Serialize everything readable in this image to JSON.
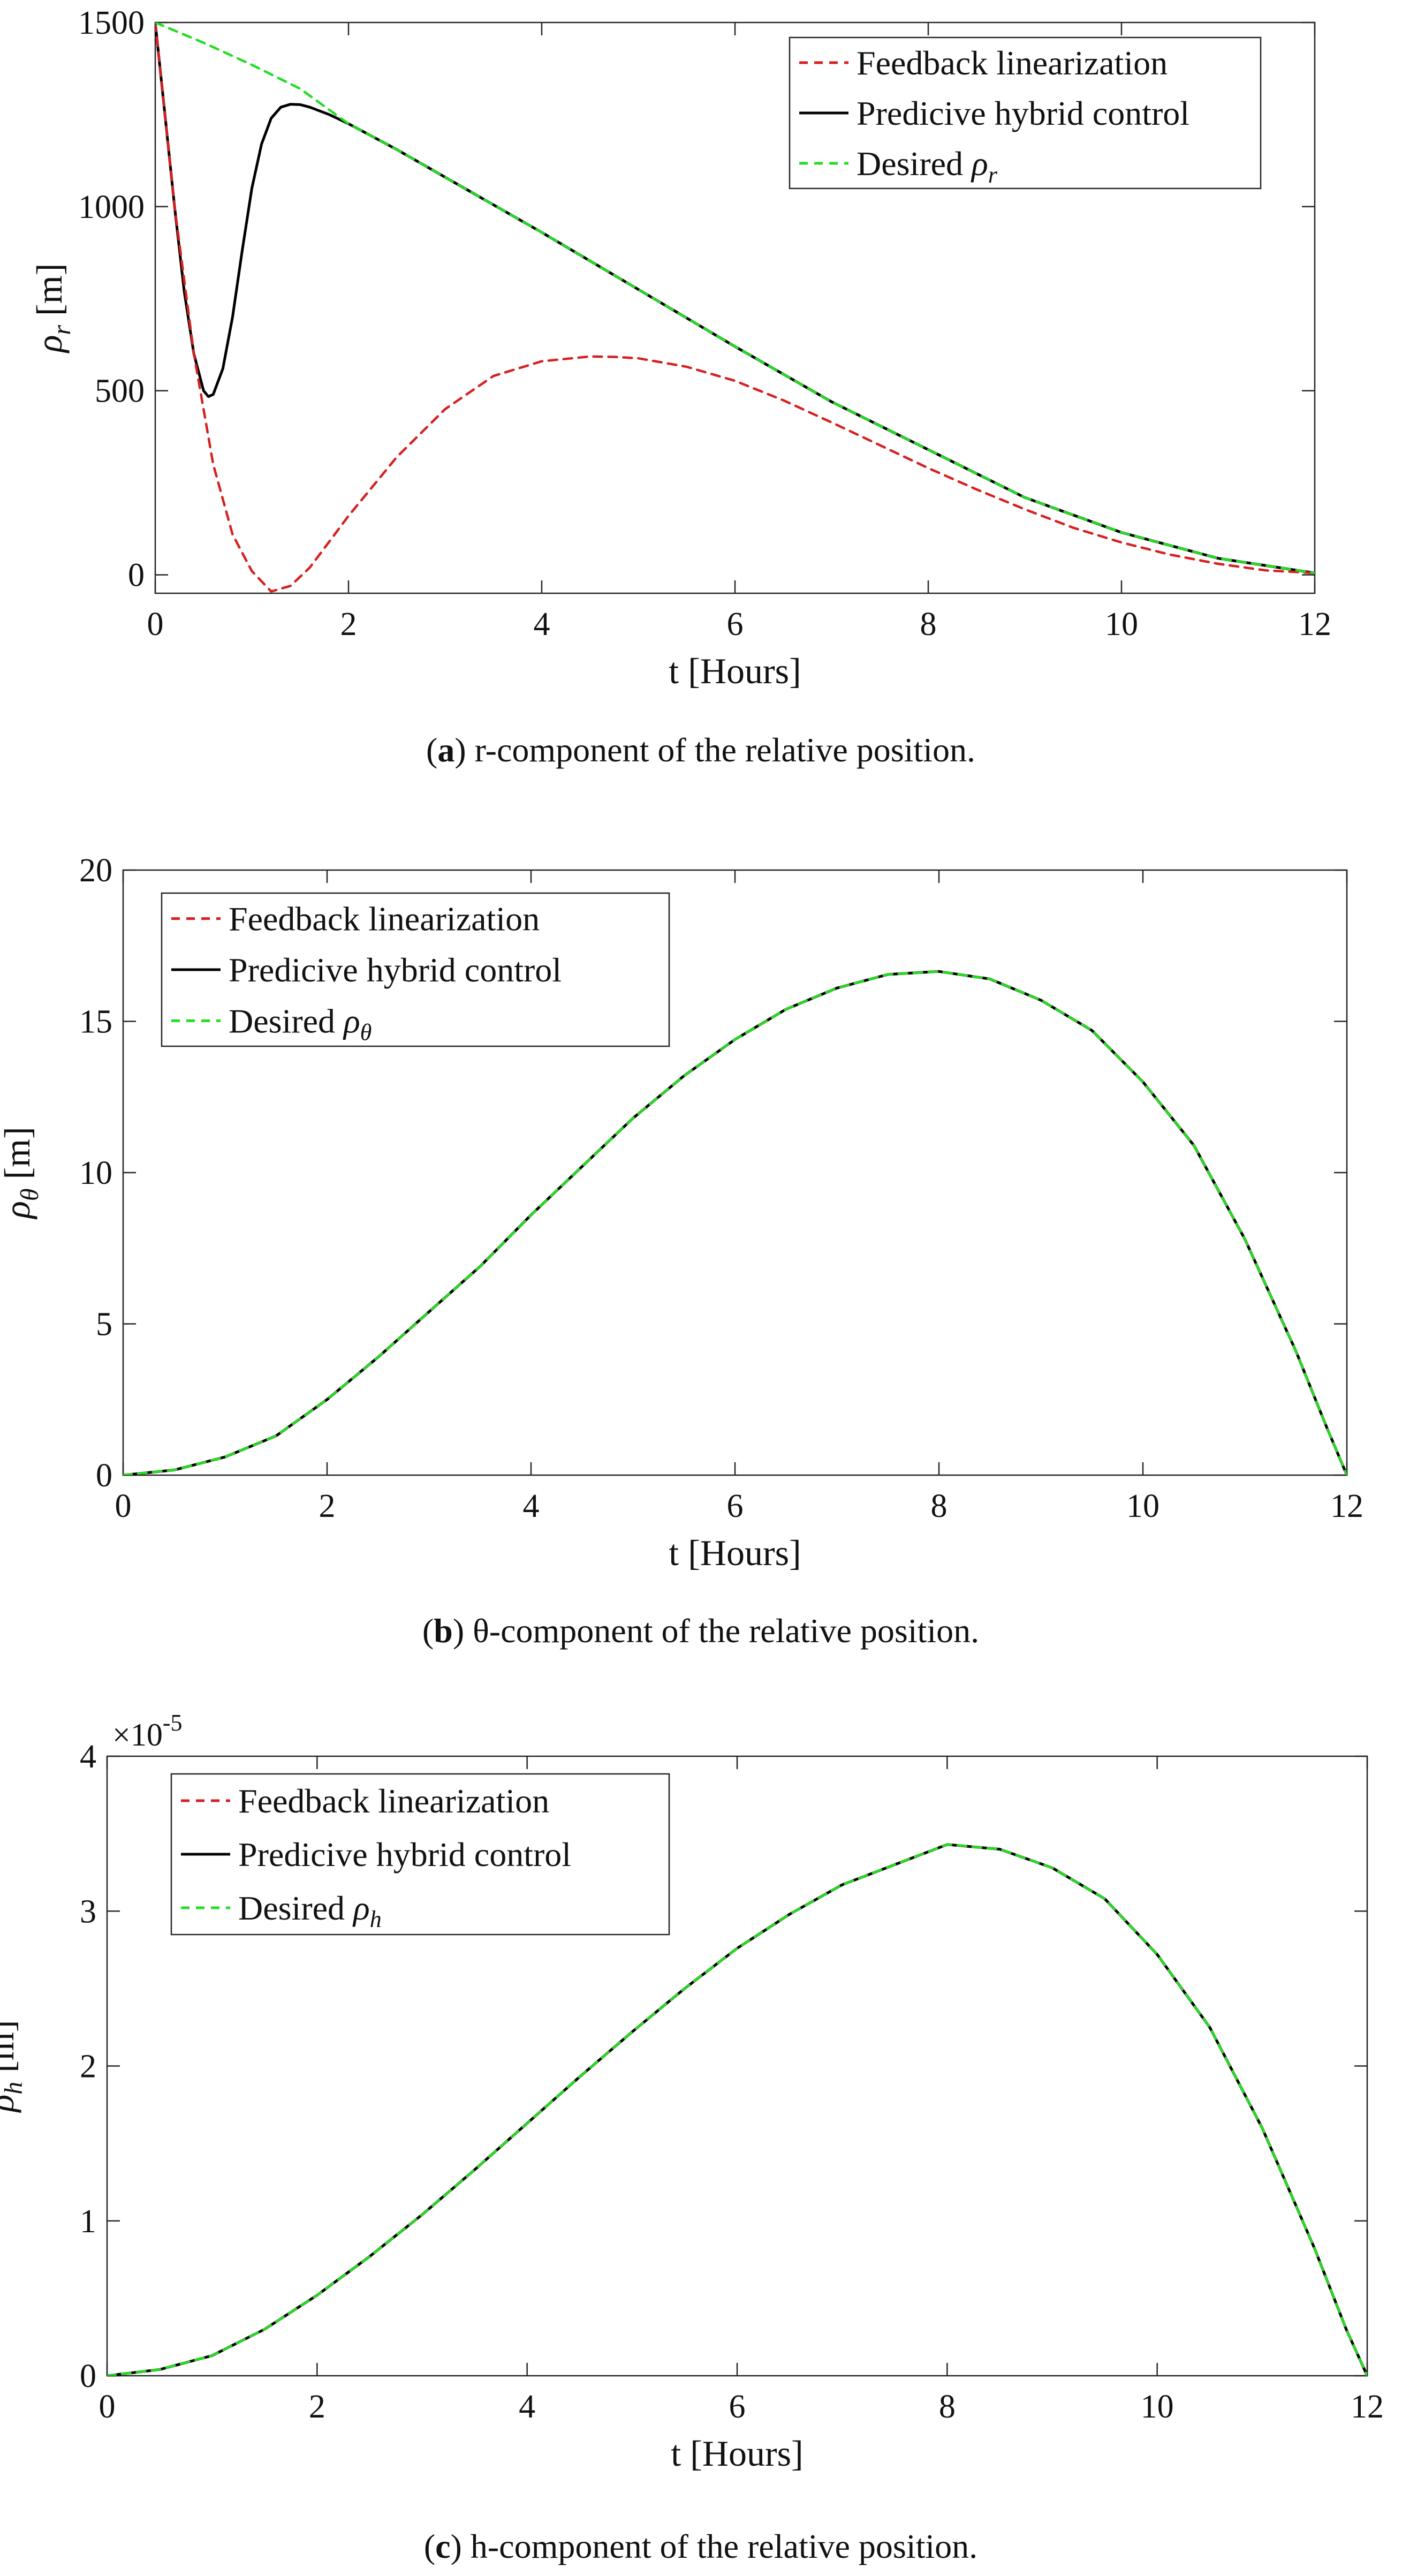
{
  "colors": {
    "feedback": "#d62020",
    "predictive": "#000000",
    "desired": "#22dd22",
    "axis": "#262626",
    "text": "#111111"
  },
  "legend_labels": {
    "feedback": "Feedback linearization",
    "predictive": "Predicive hybrid control",
    "desired_prefix": "Desired"
  },
  "chart_data": [
    {
      "type": "line",
      "panel": "a",
      "caption_letter": "a",
      "caption_text": "r-component of the relative position.",
      "xlabel": "t [Hours]",
      "ylabel_symbol": "ρ",
      "ylabel_sub": "r",
      "ylabel_unit": "[m]",
      "legend_desired_sub": "r",
      "legend_position": "top-right",
      "multiplier": "",
      "xlim": [
        0,
        12
      ],
      "ylim": [
        -50,
        1500
      ],
      "xticks": [
        "0",
        "2",
        "4",
        "6",
        "8",
        "10",
        "12"
      ],
      "yticks": [
        "0",
        "500",
        "1000",
        "1500"
      ],
      "ytick_values": [
        0,
        500,
        1000,
        1500
      ],
      "grid": false,
      "series": [
        {
          "key": "feedback",
          "name": "Feedback linearization",
          "style": "dashed",
          "x": [
            0,
            0.2,
            0.4,
            0.6,
            0.8,
            1.0,
            1.2,
            1.4,
            1.6,
            2.0,
            2.5,
            3.0,
            3.5,
            4.0,
            4.5,
            4.75,
            5.0,
            5.5,
            6.0,
            6.5,
            7.0,
            7.5,
            8.0,
            8.5,
            9.0,
            9.5,
            10.0,
            10.5,
            11.0,
            11.5,
            12.0
          ],
          "y": [
            1500,
            1000,
            600,
            300,
            110,
            10,
            -45,
            -30,
            20,
            160,
            320,
            450,
            540,
            580,
            593,
            592,
            588,
            565,
            527,
            474,
            414,
            352,
            290,
            232,
            178,
            128,
            88,
            55,
            30,
            12,
            5
          ]
        },
        {
          "key": "predictive",
          "name": "Predicive hybrid control",
          "style": "solid",
          "x": [
            0,
            0.1,
            0.2,
            0.3,
            0.4,
            0.5,
            0.55,
            0.6,
            0.7,
            0.8,
            0.9,
            1.0,
            1.1,
            1.2,
            1.3,
            1.4,
            1.5,
            1.6,
            1.8,
            2.0,
            2.5,
            3.0,
            4.0,
            5.0,
            6.0,
            7.0,
            8.0,
            9.0,
            10.0,
            11.0,
            12.0
          ],
          "y": [
            1500,
            1250,
            1000,
            770,
            600,
            500,
            484,
            490,
            560,
            700,
            880,
            1050,
            1170,
            1240,
            1270,
            1278,
            1277,
            1270,
            1250,
            1225,
            1155,
            1080,
            930,
            775,
            620,
            470,
            340,
            210,
            115,
            45,
            5
          ]
        },
        {
          "key": "desired",
          "name": "Desired ρr",
          "style": "dashed",
          "x": [
            0,
            0.5,
            1.0,
            1.5,
            2.0,
            2.5,
            3.0,
            4.0,
            5.0,
            6.0,
            7.0,
            8.0,
            9.0,
            10.0,
            11.0,
            12.0
          ],
          "y": [
            1500,
            1445,
            1385,
            1320,
            1225,
            1155,
            1080,
            930,
            775,
            620,
            470,
            340,
            210,
            115,
            45,
            5
          ]
        }
      ]
    },
    {
      "type": "line",
      "panel": "b",
      "caption_letter": "b",
      "caption_text": "θ-component of the relative position.",
      "xlabel": "t [Hours]",
      "ylabel_symbol": "ρ",
      "ylabel_sub": "θ",
      "ylabel_unit": "[m]",
      "legend_desired_sub": "θ",
      "legend_position": "top-left",
      "multiplier": "",
      "xlim": [
        0,
        12
      ],
      "ylim": [
        0,
        20
      ],
      "xticks": [
        "0",
        "2",
        "4",
        "6",
        "8",
        "10",
        "12"
      ],
      "yticks": [
        "0",
        "5",
        "10",
        "15",
        "20"
      ],
      "ytick_values": [
        0,
        5,
        10,
        15,
        20
      ],
      "grid": false,
      "series": [
        {
          "key": "feedback",
          "name": "Feedback linearization",
          "style": "dashed",
          "x": [
            0,
            0.5,
            1,
            1.5,
            2,
            2.5,
            3,
            3.5,
            4,
            4.5,
            5,
            5.5,
            6,
            6.5,
            7,
            7.5,
            8,
            8.5,
            9,
            9.5,
            10,
            10.5,
            11,
            11.5,
            11.8,
            12
          ],
          "y": [
            0,
            0.17,
            0.6,
            1.3,
            2.5,
            3.9,
            5.4,
            6.9,
            8.6,
            10.2,
            11.8,
            13.2,
            14.4,
            15.4,
            16.1,
            16.55,
            16.65,
            16.4,
            15.7,
            14.7,
            13.0,
            10.9,
            7.8,
            4.1,
            1.6,
            0
          ]
        },
        {
          "key": "predictive",
          "name": "Predicive hybrid control",
          "style": "solid",
          "x": [
            0,
            0.5,
            1,
            1.5,
            2,
            2.5,
            3,
            3.5,
            4,
            4.5,
            5,
            5.5,
            6,
            6.5,
            7,
            7.5,
            8,
            8.5,
            9,
            9.5,
            10,
            10.5,
            11,
            11.5,
            11.8,
            12
          ],
          "y": [
            0,
            0.17,
            0.6,
            1.3,
            2.5,
            3.9,
            5.4,
            6.9,
            8.6,
            10.2,
            11.8,
            13.2,
            14.4,
            15.4,
            16.1,
            16.55,
            16.65,
            16.4,
            15.7,
            14.7,
            13.0,
            10.9,
            7.8,
            4.1,
            1.6,
            0
          ]
        },
        {
          "key": "desired",
          "name": "Desired ρθ",
          "style": "dashed",
          "x": [
            0,
            0.5,
            1,
            1.5,
            2,
            2.5,
            3,
            3.5,
            4,
            4.5,
            5,
            5.5,
            6,
            6.5,
            7,
            7.5,
            8,
            8.5,
            9,
            9.5,
            10,
            10.5,
            11,
            11.5,
            11.8,
            12
          ],
          "y": [
            0,
            0.17,
            0.6,
            1.3,
            2.5,
            3.9,
            5.4,
            6.9,
            8.6,
            10.2,
            11.8,
            13.2,
            14.4,
            15.4,
            16.1,
            16.55,
            16.65,
            16.4,
            15.7,
            14.7,
            13.0,
            10.9,
            7.8,
            4.1,
            1.6,
            0
          ]
        }
      ]
    },
    {
      "type": "line",
      "panel": "c",
      "caption_letter": "c",
      "caption_text": "h-component of the relative position.",
      "xlabel": "t [Hours]",
      "ylabel_symbol": "ρ",
      "ylabel_sub": "h",
      "ylabel_unit": "[m]",
      "legend_desired_sub": "h",
      "legend_position": "top-left",
      "multiplier": "×10",
      "multiplier_exp": "-5",
      "xlim": [
        0,
        12
      ],
      "ylim": [
        0,
        4
      ],
      "xticks": [
        "0",
        "2",
        "4",
        "6",
        "8",
        "10",
        "12"
      ],
      "yticks": [
        "0",
        "1",
        "2",
        "3",
        "4"
      ],
      "ytick_values": [
        0,
        1,
        2,
        3,
        4
      ],
      "grid": false,
      "series": [
        {
          "key": "feedback",
          "name": "Feedback linearization",
          "style": "dashed",
          "x": [
            0,
            0.5,
            1,
            1.5,
            2,
            2.5,
            3,
            3.5,
            4,
            4.5,
            5,
            5.5,
            6,
            6.5,
            7,
            7.5,
            8,
            8.5,
            9,
            9.5,
            10,
            10.5,
            11,
            11.5,
            11.8,
            12
          ],
          "y": [
            0,
            0.04,
            0.13,
            0.3,
            0.52,
            0.77,
            1.04,
            1.33,
            1.63,
            1.93,
            2.22,
            2.5,
            2.76,
            2.98,
            3.17,
            3.3,
            3.43,
            3.4,
            3.28,
            3.08,
            2.72,
            2.25,
            1.6,
            0.82,
            0.3,
            0
          ]
        },
        {
          "key": "predictive",
          "name": "Predicive hybrid control",
          "style": "solid",
          "x": [
            0,
            0.5,
            1,
            1.5,
            2,
            2.5,
            3,
            3.5,
            4,
            4.5,
            5,
            5.5,
            6,
            6.5,
            7,
            7.5,
            8,
            8.5,
            9,
            9.5,
            10,
            10.5,
            11,
            11.5,
            11.8,
            12
          ],
          "y": [
            0,
            0.04,
            0.13,
            0.3,
            0.52,
            0.77,
            1.04,
            1.33,
            1.63,
            1.93,
            2.22,
            2.5,
            2.76,
            2.98,
            3.17,
            3.3,
            3.43,
            3.4,
            3.28,
            3.08,
            2.72,
            2.25,
            1.6,
            0.82,
            0.3,
            0
          ]
        },
        {
          "key": "desired",
          "name": "Desired ρh",
          "style": "dashed",
          "x": [
            0,
            0.5,
            1,
            1.5,
            2,
            2.5,
            3,
            3.5,
            4,
            4.5,
            5,
            5.5,
            6,
            6.5,
            7,
            7.5,
            8,
            8.5,
            9,
            9.5,
            10,
            10.5,
            11,
            11.5,
            11.8,
            12
          ],
          "y": [
            0,
            0.04,
            0.13,
            0.3,
            0.52,
            0.77,
            1.04,
            1.33,
            1.63,
            1.93,
            2.22,
            2.5,
            2.76,
            2.98,
            3.17,
            3.3,
            3.43,
            3.4,
            3.28,
            3.08,
            2.72,
            2.25,
            1.6,
            0.82,
            0.3,
            0
          ]
        }
      ]
    }
  ]
}
